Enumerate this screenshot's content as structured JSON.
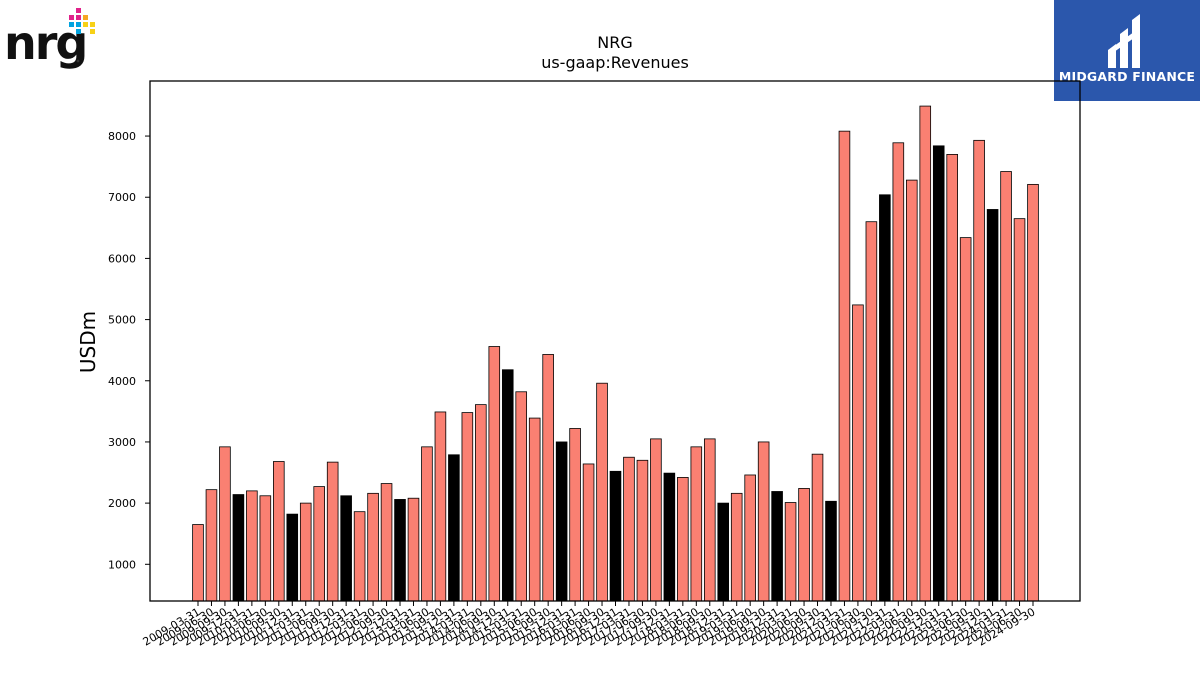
{
  "logos": {
    "left": "nrg",
    "right": "MIDGARD FINANCE"
  },
  "colors": {
    "bar_default": "#fa8072",
    "bar_highlight": "#000000",
    "brand_right_bg": "#2b57ac"
  },
  "chart_data": {
    "type": "bar",
    "title": "NRG",
    "subtitle": "us-gaap:Revenues",
    "xlabel": "",
    "ylabel": "USDm",
    "ylim": [
      400,
      8900
    ],
    "yticks": [
      1000,
      2000,
      3000,
      4000,
      5000,
      6000,
      7000,
      8000
    ],
    "grid": false,
    "categories": [
      "2009-03-31",
      "2009-06-30",
      "2009-09-30",
      "2009-12-31",
      "2010-03-31",
      "2010-06-30",
      "2010-09-30",
      "2010-12-31",
      "2011-03-31",
      "2011-06-30",
      "2011-09-30",
      "2011-12-31",
      "2012-03-31",
      "2012-06-30",
      "2012-09-30",
      "2012-12-31",
      "2013-03-31",
      "2013-06-30",
      "2013-09-30",
      "2013-12-31",
      "2014-03-31",
      "2014-06-30",
      "2014-09-30",
      "2014-12-31",
      "2015-03-31",
      "2015-06-30",
      "2015-09-30",
      "2015-12-31",
      "2016-03-31",
      "2016-06-30",
      "2016-09-30",
      "2016-12-31",
      "2017-03-31",
      "2017-06-30",
      "2017-09-30",
      "2017-12-31",
      "2018-03-31",
      "2018-06-30",
      "2018-09-30",
      "2018-12-31",
      "2019-03-31",
      "2019-06-30",
      "2019-09-30",
      "2019-12-31",
      "2020-03-31",
      "2020-06-30",
      "2020-09-30",
      "2020-12-31",
      "2021-03-31",
      "2021-06-30",
      "2021-09-30",
      "2021-12-31",
      "2022-03-31",
      "2022-06-30",
      "2022-09-30",
      "2022-12-31",
      "2023-03-31",
      "2023-06-30",
      "2023-09-30",
      "2023-12-31",
      "2024-03-31",
      "2024-06-30",
      "2024-09-30"
    ],
    "values": [
      1650,
      2220,
      2920,
      2140,
      2200,
      2120,
      2680,
      1820,
      2000,
      2270,
      2670,
      2120,
      1860,
      2160,
      2320,
      2060,
      2080,
      2920,
      3490,
      2790,
      3480,
      3610,
      4560,
      4180,
      3820,
      3390,
      4430,
      3000,
      3220,
      2640,
      3960,
      2520,
      2750,
      2700,
      3050,
      2490,
      2420,
      2920,
      3050,
      2000,
      2160,
      2460,
      3000,
      2190,
      2010,
      2240,
      2800,
      2030,
      8080,
      5240,
      6600,
      7040,
      7890,
      7280,
      8490,
      7840,
      7700,
      6340,
      7930,
      6800,
      7420,
      6650,
      7210
    ],
    "highlight_rule": "Q4 (year-end) bars drawn in black"
  }
}
